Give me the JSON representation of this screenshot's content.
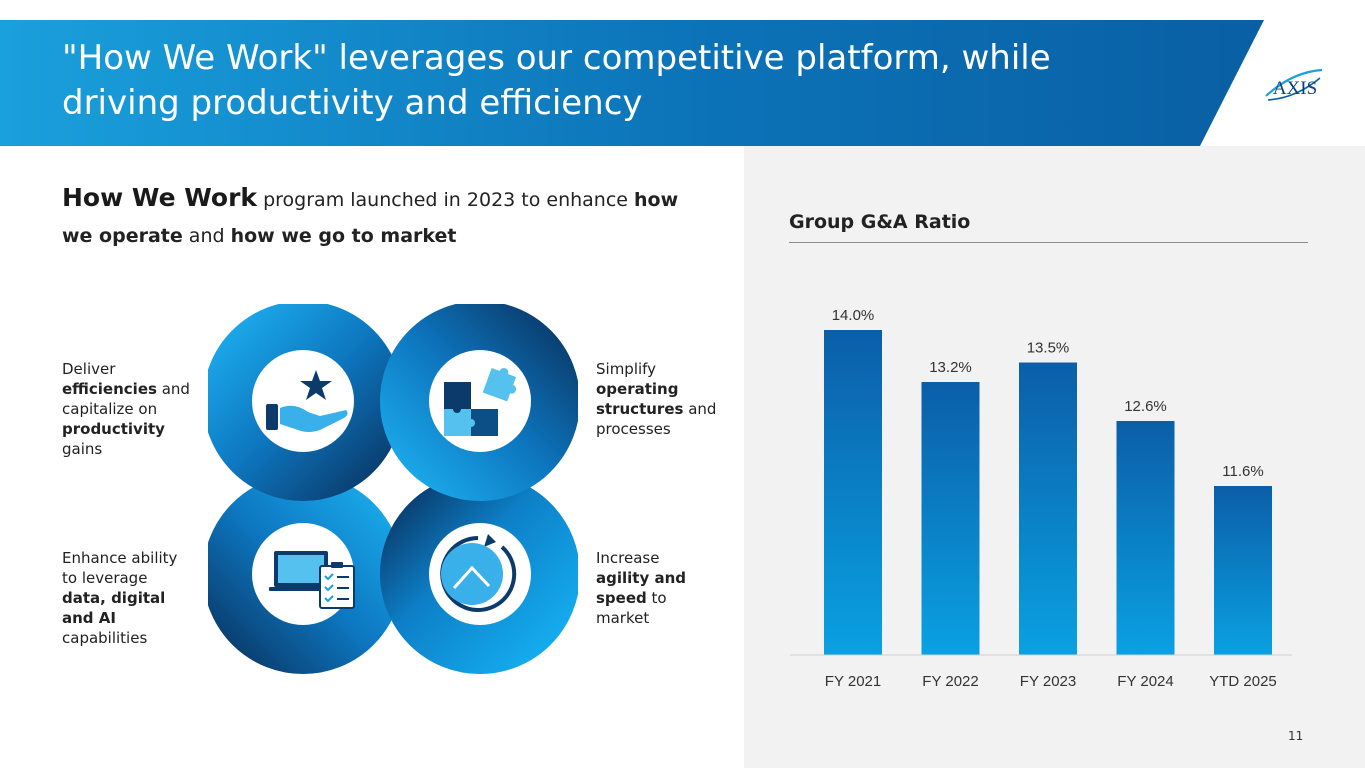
{
  "header": {
    "title_line1": "\"How We Work\" leverages our competitive platform, while",
    "title_line2": "driving productivity and efficiency",
    "logo_text": "AXIS"
  },
  "headline": {
    "lead": "How We Work",
    "part1": " program launched in 2023 to enhance ",
    "emph1": "how we operate",
    "part2": " and ",
    "emph2": "how we go to market"
  },
  "quadrants": {
    "top_left": {
      "icon": "hand-star-icon",
      "lines": [
        {
          "text": "Deliver",
          "bold": false
        },
        {
          "text": "efficiencies",
          "bold": true,
          "suffix": " and"
        },
        {
          "text": "capitalize on",
          "bold": false
        },
        {
          "text": "productivity",
          "bold": true
        },
        {
          "text": "gains",
          "bold": false
        }
      ]
    },
    "top_right": {
      "icon": "puzzle-icon",
      "lines": [
        {
          "text": "Simplify",
          "bold": false
        },
        {
          "text": "operating",
          "bold": true
        },
        {
          "text": "structures",
          "bold": true,
          "suffix": " and"
        },
        {
          "text": "processes",
          "bold": false
        }
      ]
    },
    "bottom_left": {
      "icon": "laptop-checklist-icon",
      "lines": [
        {
          "text": "Enhance ability",
          "bold": false
        },
        {
          "text": "to leverage",
          "bold": false
        },
        {
          "text": "data, digital",
          "bold": true
        },
        {
          "text": "and AI",
          "bold": true
        },
        {
          "text": "capabilities",
          "bold": false
        }
      ]
    },
    "bottom_right": {
      "icon": "clock-refresh-icon",
      "lines": [
        {
          "text": "Increase",
          "bold": false
        },
        {
          "text": "agility and",
          "bold": true
        },
        {
          "text": "speed",
          "bold": true,
          "suffix": " to"
        },
        {
          "text": "market",
          "bold": false
        }
      ]
    }
  },
  "chart_data": {
    "type": "bar",
    "title": "Group G&A Ratio",
    "categories": [
      "FY 2021",
      "FY 2022",
      "FY 2023",
      "FY 2024",
      "YTD 2025"
    ],
    "values": [
      14.0,
      13.2,
      13.5,
      12.6,
      11.6
    ],
    "value_labels": [
      "14.0%",
      "13.2%",
      "13.5%",
      "12.6%",
      "11.6%"
    ],
    "xlabel": "",
    "ylabel": "",
    "ylim": [
      9.0,
      14.0
    ],
    "grid": false,
    "bar_color_top": "#0b5ea8",
    "bar_color_bottom": "#0aa1e2"
  },
  "colors": {
    "banner_dark": "#0a62a6",
    "banner_light": "#1aa3e0",
    "ring_dark": "#0b4f86",
    "ring_light": "#19a8e8",
    "panel_bg": "#f2f2f2"
  },
  "footer": {
    "page_number": "11"
  }
}
